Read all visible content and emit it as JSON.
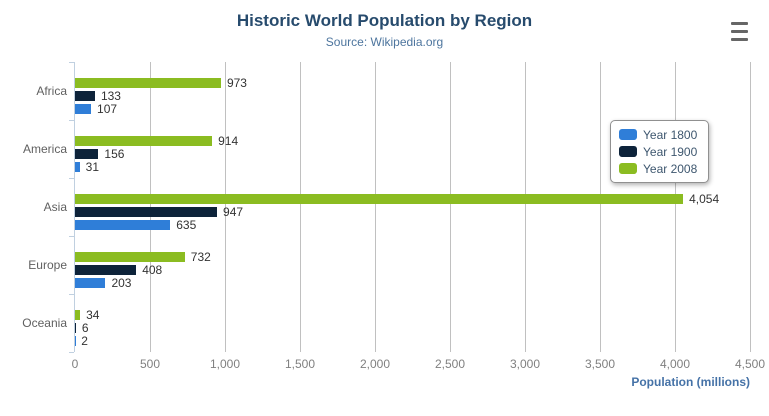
{
  "title": "Historic World Population by Region",
  "subtitle": "Source: Wikipedia.org",
  "export_menu": {
    "icon": "hamburger-icon"
  },
  "legend": {
    "position": "right",
    "items": [
      {
        "label": "Year 1800",
        "color": "#2f7ed8"
      },
      {
        "label": "Year 1900",
        "color": "#0d233a"
      },
      {
        "label": "Year 2008",
        "color": "#8bbc21"
      }
    ]
  },
  "chart_data": {
    "type": "bar",
    "title": "Historic World Population by Region",
    "subtitle": "Source: Wikipedia.org",
    "categories": [
      "Africa",
      "America",
      "Asia",
      "Europe",
      "Oceania"
    ],
    "series": [
      {
        "name": "Year 1800",
        "color": "#2f7ed8",
        "values": [
          107,
          31,
          635,
          203,
          2
        ]
      },
      {
        "name": "Year 1900",
        "color": "#0d233a",
        "values": [
          133,
          156,
          947,
          408,
          6
        ]
      },
      {
        "name": "Year 2008",
        "color": "#8bbc21",
        "values": [
          973,
          914,
          4054,
          732,
          34
        ]
      }
    ],
    "bar_order_top_to_bottom": [
      "Year 2008",
      "Year 1900",
      "Year 1800"
    ],
    "data_labels": [
      "107",
      "31",
      "635",
      "203",
      "2",
      "133",
      "156",
      "947",
      "408",
      "6",
      "973",
      "914",
      "4,054",
      "732",
      "34"
    ],
    "xlabel": "",
    "ylabel": "Population (millions)",
    "value_axis": {
      "min": 0,
      "max": 4500,
      "tick_interval": 500,
      "tick_labels": [
        "0",
        "500",
        "1,000",
        "1,500",
        "2,000",
        "2,500",
        "3,000",
        "3,500",
        "4,000",
        "4,500"
      ]
    },
    "grid": true,
    "legend_position": "right"
  },
  "colors": {
    "title": "#274b6d",
    "subtitle": "#4d759e",
    "axis_title": "#4572a7",
    "grid_line": "#c0c0c0",
    "axis_line": "#c0d0e0",
    "category_label": "#606060",
    "tick_label": "#808080",
    "data_label": "#333333",
    "legend_text": "#3e576f",
    "legend_border": "#909090",
    "menu_icon": "#666666",
    "background": "#ffffff"
  }
}
